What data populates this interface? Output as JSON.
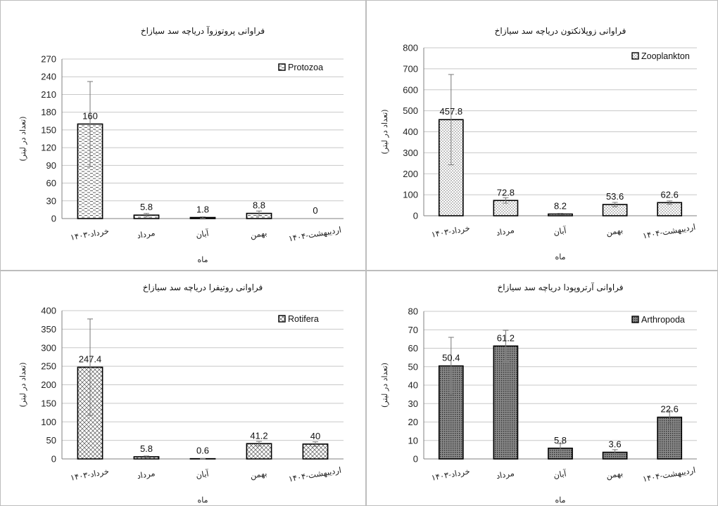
{
  "chart_data": [
    {
      "type": "bar",
      "title": "فراوانی پروتوزوآ دریاچه سد سیازاخ",
      "xlabel": "ماه",
      "ylabel": "(تعداد در لیتر)",
      "categories": [
        "خرداد-۱۴۰۳",
        "مرداد",
        "آبان",
        "بهمن",
        "اردیبهشت-۱۴۰۴"
      ],
      "series": [
        {
          "name": "Protozoa",
          "values": [
            160,
            5.8,
            1.8,
            8.8,
            0
          ],
          "errors": [
            72,
            3,
            1.2,
            4,
            0
          ]
        }
      ],
      "ylim": [
        0,
        270
      ],
      "yticks": [
        0,
        30,
        60,
        90,
        120,
        150,
        180,
        210,
        240,
        270
      ],
      "data_labels": [
        "160",
        "5.8",
        "1.8",
        "8.8",
        "0"
      ],
      "legend_position": "top-right",
      "grid": true,
      "pattern": "dash"
    },
    {
      "type": "bar",
      "title": "فراوانی زوپلانکتون  دریاچه سد سیازاخ",
      "xlabel": "ماه",
      "ylabel": "(تعداد در لیتر)",
      "categories": [
        "خرداد-۱۴۰۳",
        "مرداد",
        "آبان",
        "بهمن",
        "اردیبهشت-۱۴۰۴"
      ],
      "series": [
        {
          "name": "Zooplankton",
          "values": [
            457.8,
            72.8,
            8.2,
            53.6,
            62.6
          ],
          "errors": [
            215,
            13,
            3,
            10,
            8
          ]
        }
      ],
      "ylim": [
        0,
        800
      ],
      "yticks": [
        0,
        100,
        200,
        300,
        400,
        500,
        600,
        700,
        800
      ],
      "data_labels": [
        "457.8",
        "72.8",
        "8.2",
        "53.6",
        "62.6"
      ],
      "legend_position": "top-right",
      "grid": true,
      "pattern": "dots"
    },
    {
      "type": "bar",
      "title": "فراوانی روتیفرا  دریاچه سد سیازاخ",
      "xlabel": "ماه",
      "ylabel": "(تعداد در لیتر)",
      "categories": [
        "خرداد-۱۴۰۳",
        "مرداد",
        "آبان",
        "بهمن",
        "اردیبهشت-۱۴۰۴"
      ],
      "series": [
        {
          "name": "Rotifera",
          "values": [
            247.4,
            5.8,
            0.6,
            41.2,
            40
          ],
          "errors": [
            130,
            2,
            0.5,
            6,
            6
          ]
        }
      ],
      "ylim": [
        0,
        400
      ],
      "yticks": [
        0,
        50,
        100,
        150,
        200,
        250,
        300,
        350,
        400
      ],
      "data_labels": [
        "247.4",
        "5.8",
        "0.6",
        "41.2",
        "40"
      ],
      "legend_position": "top-right",
      "grid": true,
      "pattern": "cross"
    },
    {
      "type": "bar",
      "title": "فراوانی آرتروپودا دریاچه سد سیازاخ",
      "xlabel": "ماه",
      "ylabel": "(تعداد در لیتر)",
      "categories": [
        "خرداد-۱۴۰۳",
        "مرداد",
        "آبان",
        "بهمن",
        "اردیبهشت-۱۴۰۴"
      ],
      "series": [
        {
          "name": "Arthropoda",
          "values": [
            50.4,
            61.2,
            5.8,
            3.6,
            22.6
          ],
          "errors": [
            15.5,
            8.5,
            2.5,
            1.4,
            3.5
          ]
        }
      ],
      "ylim": [
        0,
        80
      ],
      "yticks": [
        0,
        10,
        20,
        30,
        40,
        50,
        60,
        70,
        80
      ],
      "data_labels": [
        "50.4",
        "61.2",
        "5.8",
        "3.6",
        "22.6"
      ],
      "legend_position": "top-right",
      "grid": true,
      "pattern": "dense-dots"
    }
  ]
}
